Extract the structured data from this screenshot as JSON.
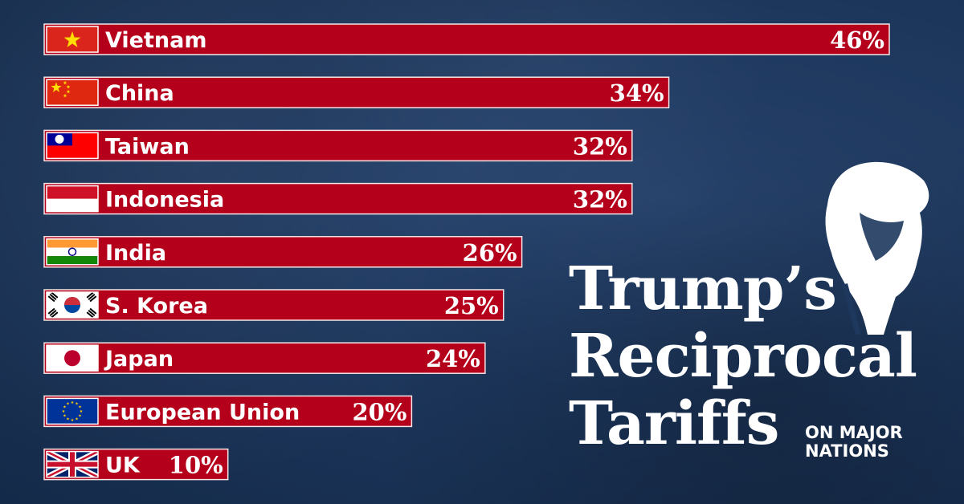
{
  "chart_data": {
    "type": "bar",
    "orientation": "horizontal",
    "title": "Trump's Reciprocal Tariffs",
    "subtitle": "ON MAJOR NATIONS",
    "categories": [
      "Vietnam",
      "China",
      "Taiwan",
      "Indonesia",
      "India",
      "S. Korea",
      "Japan",
      "European Union",
      "UK"
    ],
    "values": [
      46,
      34,
      32,
      32,
      26,
      25,
      24,
      20,
      10
    ],
    "value_labels": [
      "46%",
      "34%",
      "32%",
      "32%",
      "26%",
      "25%",
      "24%",
      "20%",
      "10%"
    ],
    "unit": "%",
    "flags": [
      "vietnam-flag-icon",
      "china-flag-icon",
      "taiwan-flag-icon",
      "indonesia-flag-icon",
      "india-flag-icon",
      "south-korea-flag-icon",
      "japan-flag-icon",
      "eu-flag-icon",
      "uk-flag-icon"
    ],
    "bar_color": "#b5001b",
    "background_color": "#1d375d",
    "grid": false,
    "legend": "none"
  },
  "title_lines": [
    "Trump’s",
    "Reciprocal",
    "Tariffs"
  ],
  "subtitle_lines": [
    "ON MAJOR",
    "NATIONS"
  ]
}
